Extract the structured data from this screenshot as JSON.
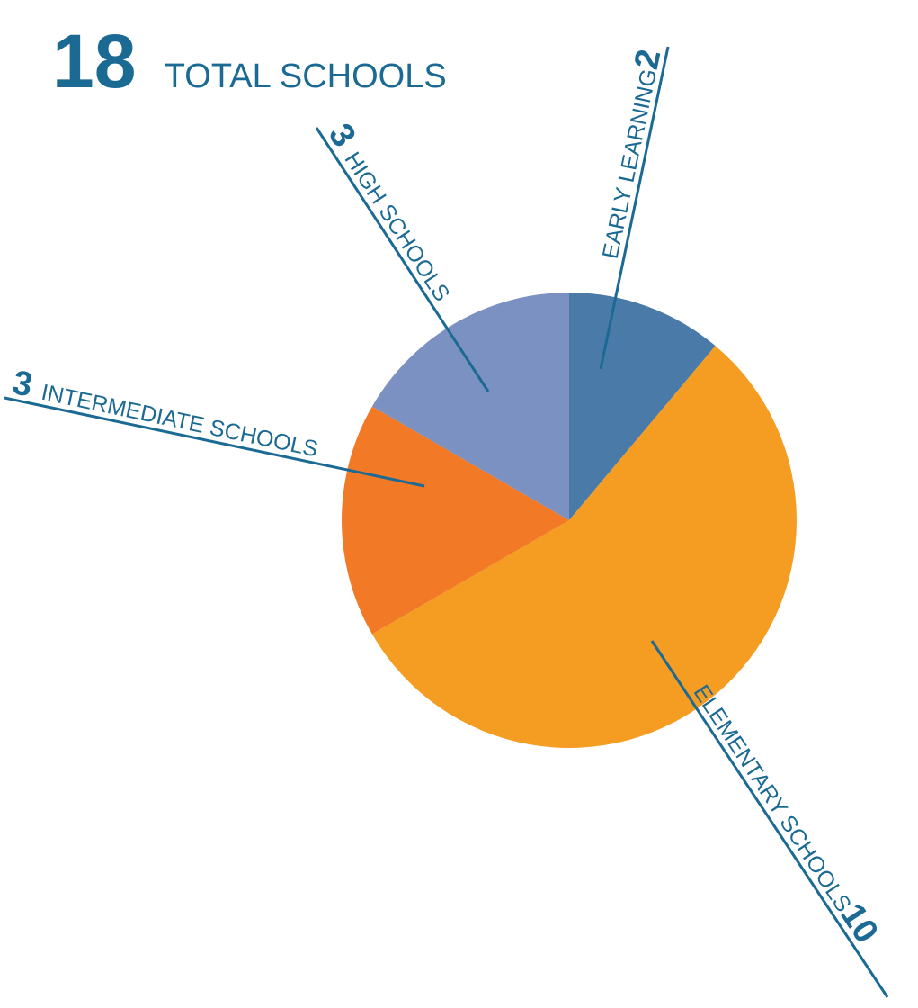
{
  "chart_data": {
    "type": "pie",
    "total": 18,
    "total_label": "TOTAL SCHOOLS",
    "categories": [
      "EARLY LEARNING",
      "ELEMENTARY SCHOOLS",
      "INTERMEDIATE SCHOOLS",
      "HIGH SCHOOLS"
    ],
    "values": [
      2,
      10,
      3,
      3
    ],
    "colors": [
      "#4a7aa8",
      "#f59c22",
      "#f27925",
      "#7a91c1"
    ],
    "text_color": "#1b6a94"
  }
}
